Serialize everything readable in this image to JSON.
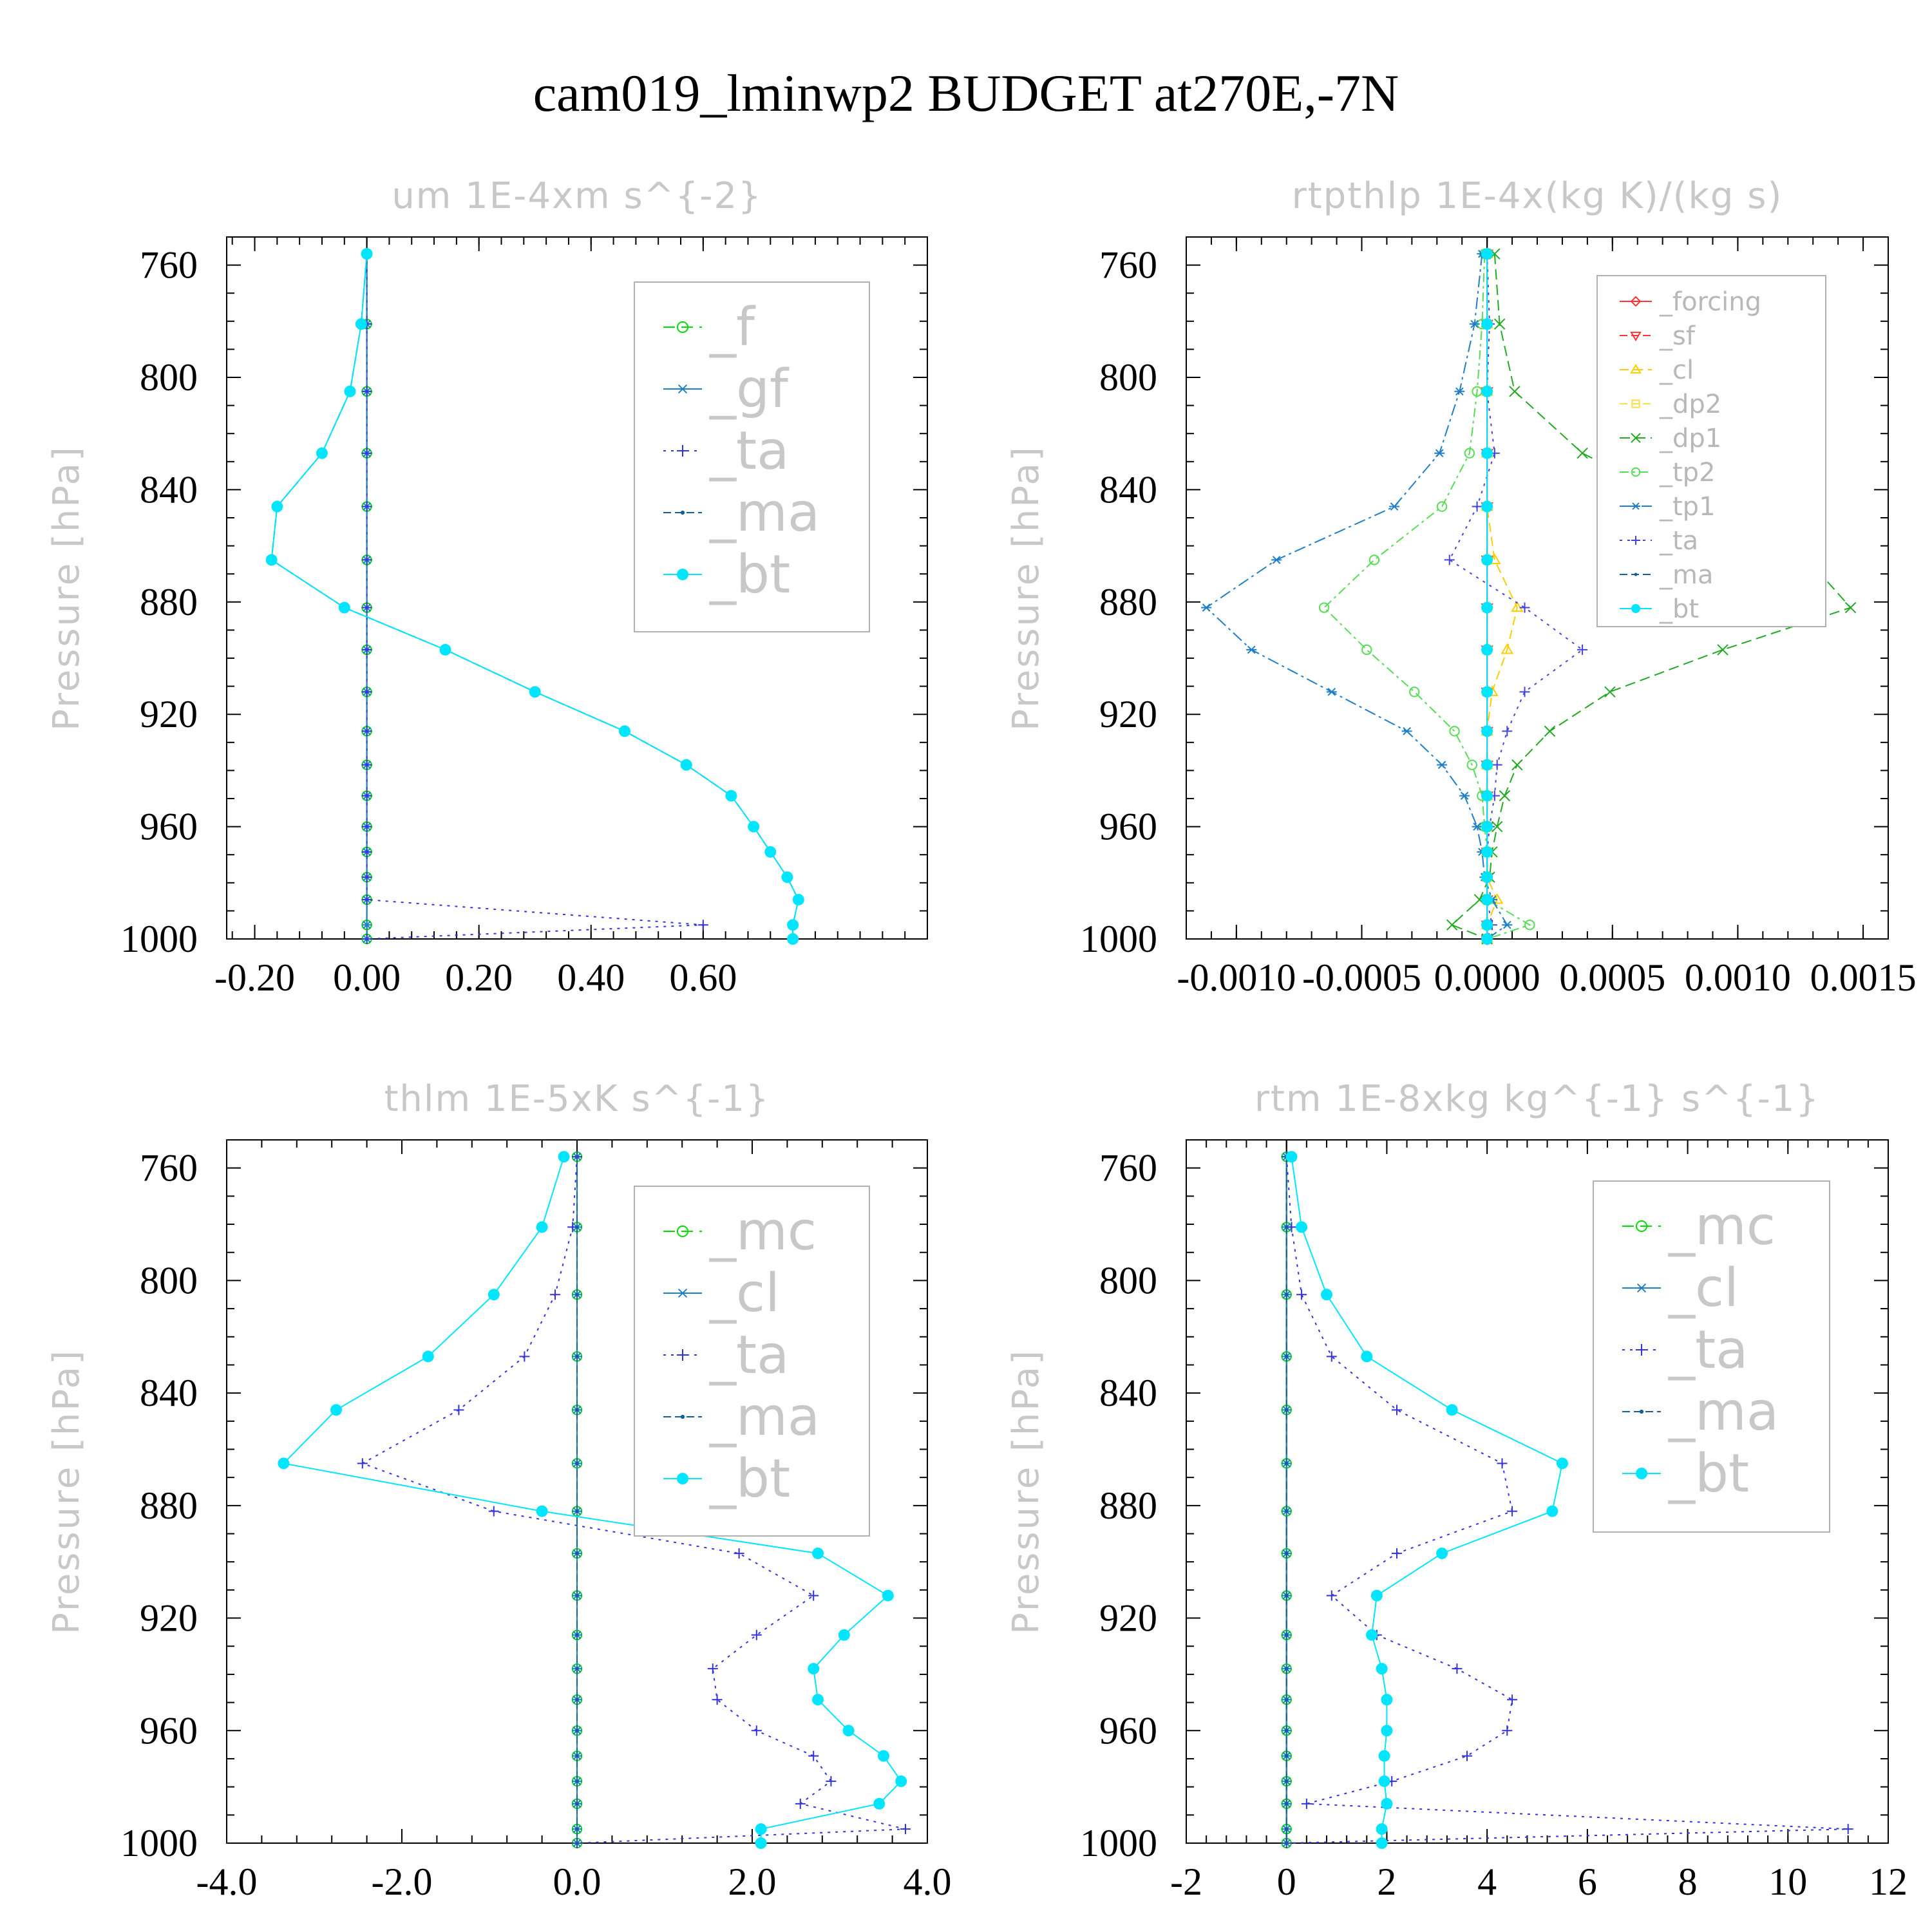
{
  "figure_title": "cam019_lminwp2  BUDGET at270E,-7N",
  "chart_data": [
    {
      "type": "line",
      "title": "um   1E-4xm s^{-2}",
      "ylabel": "Pressure [hPa]",
      "y_inverted": true,
      "ylim": [
        1000,
        750
      ],
      "xlim": [
        -0.25,
        1.0
      ],
      "xticks": [
        -0.2,
        0.0,
        0.2,
        0.4,
        0.6
      ],
      "xtick_labels": [
        "-0.20",
        "0.00",
        "0.20",
        "0.40",
        "0.60"
      ],
      "yticks": [
        760,
        800,
        840,
        880,
        920,
        960,
        1000
      ],
      "legend": {
        "style": "big",
        "entries": [
          "_f",
          "_gf",
          "_ta",
          "_ma",
          "_bt"
        ]
      },
      "pressure": [
        756,
        781,
        805,
        827,
        846,
        865,
        882,
        897,
        912,
        926,
        938,
        949,
        960,
        969,
        978,
        986,
        995,
        1000
      ],
      "series": [
        {
          "name": "_f",
          "color": "#00dd00",
          "dash": "18,10",
          "marker": "circle-open",
          "values": [
            0,
            0,
            0,
            0,
            0,
            0,
            0,
            0,
            0,
            0,
            0,
            0,
            0,
            0,
            0,
            0,
            0,
            0
          ]
        },
        {
          "name": "_gf",
          "color": "#1e7fc8",
          "dash": "none",
          "marker": "star",
          "values": [
            0,
            0,
            0,
            0,
            0,
            0,
            0,
            0,
            0,
            0,
            0,
            0,
            0,
            0,
            0,
            0,
            0,
            0
          ]
        },
        {
          "name": "_ta",
          "color": "#3333dd",
          "dash": "4,8",
          "marker": "plus",
          "values": [
            0,
            0,
            0,
            0,
            0,
            0,
            0,
            0,
            0,
            0,
            0,
            0,
            0,
            0,
            0,
            0,
            0.6,
            0
          ]
        },
        {
          "name": "_ma",
          "color": "#1060a0",
          "dash": "12,6",
          "marker": "dot",
          "values": [
            0,
            -0.01,
            -0.03,
            -0.08,
            -0.16,
            -0.17,
            -0.04,
            0.14,
            0.3,
            0.46,
            0.57,
            0.65,
            0.69,
            0.72,
            0.75,
            0.77,
            0.76,
            0.76
          ]
        },
        {
          "name": "_bt",
          "color": "#00e5ff",
          "dash": "none",
          "marker": "filled",
          "values": [
            0,
            -0.01,
            -0.03,
            -0.08,
            -0.16,
            -0.17,
            -0.04,
            0.14,
            0.3,
            0.46,
            0.57,
            0.65,
            0.69,
            0.72,
            0.75,
            0.77,
            0.76,
            0.76
          ]
        }
      ]
    },
    {
      "type": "line",
      "title": "rtpthlp   1E-4x(kg K)/(kg s)",
      "ylabel": "Pressure [hPa]",
      "y_inverted": true,
      "ylim": [
        1000,
        750
      ],
      "xlim": [
        -0.0012,
        0.0016
      ],
      "xticks": [
        -0.001,
        -0.0005,
        0.0,
        0.0005,
        0.001,
        0.0015
      ],
      "xtick_labels": [
        "-0.0010",
        "-0.0005",
        "0.0000",
        "0.0005",
        "0.0010",
        "0.0015"
      ],
      "yticks": [
        760,
        800,
        840,
        880,
        920,
        960,
        1000
      ],
      "legend": {
        "style": "small",
        "entries": [
          "_forcing",
          "_sf",
          "_cl",
          "_dp2",
          "_dp1",
          "_tp2",
          "_tp1",
          "_ta",
          "_ma",
          "_bt"
        ]
      },
      "pressure": [
        756,
        781,
        805,
        827,
        846,
        865,
        882,
        897,
        912,
        926,
        938,
        949,
        960,
        969,
        978,
        986,
        995,
        1000
      ],
      "series": [
        {
          "name": "_forcing",
          "color": "#ff3333",
          "dash": "none",
          "marker": "diamond",
          "values": [
            0,
            0,
            0,
            0,
            0,
            0,
            0,
            0,
            0,
            0,
            0,
            0,
            0,
            0,
            0,
            0,
            0,
            0
          ]
        },
        {
          "name": "_sf",
          "color": "#ff3333",
          "dash": "12,6",
          "marker": "tri-down",
          "values": [
            0,
            0,
            0,
            0,
            0,
            0,
            0,
            0,
            0,
            0,
            0,
            0,
            0,
            0,
            0,
            0,
            0,
            0
          ]
        },
        {
          "name": "_cl",
          "color": "#ffcc00",
          "dash": "14,8",
          "marker": "tri-up",
          "values": [
            0,
            0,
            0,
            0,
            0,
            3e-05,
            0.00012,
            8e-05,
            2e-05,
            0,
            0,
            0,
            0,
            0,
            0,
            4e-05,
            0,
            0
          ]
        },
        {
          "name": "_dp2",
          "color": "#ffdd44",
          "dash": "12,6",
          "marker": "square",
          "values": [
            0,
            0,
            0,
            0,
            0,
            0,
            0,
            0,
            0,
            0,
            0,
            0,
            0,
            0,
            0,
            0,
            0,
            0
          ]
        },
        {
          "name": "_dp1",
          "color": "#22aa22",
          "dash": "16,8",
          "marker": "x",
          "values": [
            3e-05,
            5e-05,
            0.00011,
            0.00038,
            0.0008,
            0.00128,
            0.00145,
            0.00094,
            0.00049,
            0.00025,
            0.00012,
            7e-05,
            4e-05,
            2e-05,
            1e-05,
            -3e-05,
            -0.00014,
            0
          ]
        },
        {
          "name": "_tp2",
          "color": "#55dd55",
          "dash": "14,6,4,6",
          "marker": "circle-open",
          "values": [
            -1e-05,
            -2e-05,
            -4e-05,
            -7e-05,
            -0.00018,
            -0.00045,
            -0.00065,
            -0.00048,
            -0.00029,
            -0.00013,
            -6e-05,
            -2e-05,
            -1e-05,
            0,
            0,
            0,
            0.00017,
            0
          ]
        },
        {
          "name": "_tp1",
          "color": "#1e7fc8",
          "dash": "18,6,4,6",
          "marker": "star",
          "values": [
            -2e-05,
            -5e-05,
            -0.00011,
            -0.00019,
            -0.00037,
            -0.00084,
            -0.00112,
            -0.00094,
            -0.00062,
            -0.00032,
            -0.00018,
            -9e-05,
            -4e-05,
            -2e-05,
            -1e-05,
            2e-05,
            8e-05,
            0
          ]
        },
        {
          "name": "_ta",
          "color": "#4444dd",
          "dash": "4,8",
          "marker": "plus",
          "values": [
            0,
            1e-05,
            0,
            3e-05,
            -4e-05,
            -0.00015,
            0.00015,
            0.00038,
            0.00015,
            8e-05,
            4e-05,
            3e-05,
            1e-05,
            0,
            0,
            0,
            2e-05,
            0
          ]
        },
        {
          "name": "_ma",
          "color": "#1060a0",
          "dash": "12,6",
          "marker": "dot",
          "values": [
            0,
            0,
            0,
            0,
            0,
            0,
            0,
            0,
            0,
            0,
            0,
            0,
            0,
            0,
            0,
            0,
            0,
            0
          ]
        },
        {
          "name": "_bt",
          "color": "#00e5ff",
          "dash": "none",
          "marker": "filled",
          "values": [
            0,
            0,
            0,
            0,
            0,
            0,
            0,
            0,
            0,
            0,
            0,
            0,
            0,
            0,
            0,
            0,
            0,
            0
          ]
        }
      ]
    },
    {
      "type": "line",
      "title": "thlm   1E-5xK s^{-1}",
      "ylabel": "Pressure [hPa]",
      "y_inverted": true,
      "ylim": [
        1000,
        750
      ],
      "xlim": [
        -4.0,
        4.0
      ],
      "xticks": [
        -4,
        -2,
        0,
        2,
        4
      ],
      "xtick_labels": [
        "-4.0",
        "-2.0",
        "0.0",
        "2.0",
        "4.0"
      ],
      "yticks": [
        760,
        800,
        840,
        880,
        920,
        960,
        1000
      ],
      "legend": {
        "style": "big",
        "entries": [
          "_mc",
          "_cl",
          "_ta",
          "_ma",
          "_bt"
        ]
      },
      "pressure": [
        756,
        781,
        805,
        827,
        846,
        865,
        882,
        897,
        912,
        926,
        938,
        949,
        960,
        969,
        978,
        986,
        995,
        1000
      ],
      "series": [
        {
          "name": "_mc",
          "color": "#00dd00",
          "dash": "18,10",
          "marker": "circle-open",
          "values": [
            0,
            0,
            0,
            0,
            0,
            0,
            0,
            0,
            0,
            0,
            0,
            0,
            0,
            0,
            0,
            0,
            0,
            0
          ]
        },
        {
          "name": "_cl",
          "color": "#1e7fc8",
          "dash": "none",
          "marker": "star",
          "values": [
            0,
            0,
            0,
            0,
            0,
            0,
            0,
            0,
            0,
            0,
            0,
            0,
            0,
            0,
            0,
            0,
            0,
            0
          ]
        },
        {
          "name": "_ta",
          "color": "#3333dd",
          "dash": "4,8",
          "marker": "plus",
          "values": [
            0,
            -0.05,
            -0.25,
            -0.6,
            -1.35,
            -2.45,
            -0.95,
            1.85,
            2.7,
            2.05,
            1.55,
            1.6,
            2.05,
            2.7,
            2.9,
            2.55,
            3.75,
            0
          ]
        },
        {
          "name": "_ma",
          "color": "#1060a0",
          "dash": "12,6",
          "marker": "dot",
          "values": [
            0,
            0,
            0,
            0,
            0,
            0,
            0,
            0,
            0,
            0,
            0,
            0,
            0,
            0,
            0,
            0,
            0,
            0
          ]
        },
        {
          "name": "_bt",
          "color": "#00e5ff",
          "dash": "none",
          "marker": "filled",
          "values": [
            -0.15,
            -0.4,
            -0.95,
            -1.7,
            -2.75,
            -3.35,
            -0.4,
            2.75,
            3.55,
            3.05,
            2.7,
            2.75,
            3.1,
            3.5,
            3.7,
            3.45,
            2.1,
            2.1
          ]
        }
      ]
    },
    {
      "type": "line",
      "title": "rtm   1E-8xkg kg^{-1} s^{-1}",
      "ylabel": "Pressure [hPa]",
      "y_inverted": true,
      "ylim": [
        1000,
        750
      ],
      "xlim": [
        -2,
        12
      ],
      "xticks": [
        -2,
        0,
        2,
        4,
        6,
        8,
        10,
        12
      ],
      "xtick_labels": [
        "-2",
        "0",
        "2",
        "4",
        "6",
        "8",
        "10",
        "12"
      ],
      "yticks": [
        760,
        800,
        840,
        880,
        920,
        960,
        1000
      ],
      "legend": {
        "style": "big",
        "entries": [
          "_mc",
          "_cl",
          "_ta",
          "_ma",
          "_bt"
        ]
      },
      "pressure": [
        756,
        781,
        805,
        827,
        846,
        865,
        882,
        897,
        912,
        926,
        938,
        949,
        960,
        969,
        978,
        986,
        995,
        1000
      ],
      "series": [
        {
          "name": "_mc",
          "color": "#00dd00",
          "dash": "18,10",
          "marker": "circle-open",
          "values": [
            0,
            0,
            0,
            0,
            0,
            0,
            0,
            0,
            0,
            0,
            0,
            0,
            0,
            0,
            0,
            0,
            0,
            0
          ]
        },
        {
          "name": "_cl",
          "color": "#1e7fc8",
          "dash": "none",
          "marker": "star",
          "values": [
            0,
            0,
            0,
            0,
            0,
            0,
            0,
            0,
            0,
            0,
            0,
            0,
            0,
            0,
            0,
            0,
            0,
            0
          ]
        },
        {
          "name": "_ta",
          "color": "#3333dd",
          "dash": "4,8",
          "marker": "plus",
          "values": [
            0,
            0.1,
            0.3,
            0.9,
            2.2,
            4.3,
            4.5,
            2.2,
            0.9,
            1.8,
            3.4,
            4.5,
            4.4,
            3.6,
            2.1,
            0.4,
            11.2,
            0
          ]
        },
        {
          "name": "_ma",
          "color": "#1060a0",
          "dash": "12,6",
          "marker": "dot",
          "values": [
            0,
            0,
            0,
            0,
            0,
            0,
            0,
            0,
            0,
            0,
            0,
            0,
            0,
            0,
            0,
            0,
            0,
            0
          ]
        },
        {
          "name": "_bt",
          "color": "#00e5ff",
          "dash": "none",
          "marker": "filled",
          "values": [
            0.1,
            0.3,
            0.8,
            1.6,
            3.3,
            5.5,
            5.3,
            3.1,
            1.8,
            1.7,
            1.9,
            2.0,
            2.0,
            1.95,
            1.95,
            2.0,
            1.9,
            1.9
          ]
        }
      ]
    }
  ]
}
